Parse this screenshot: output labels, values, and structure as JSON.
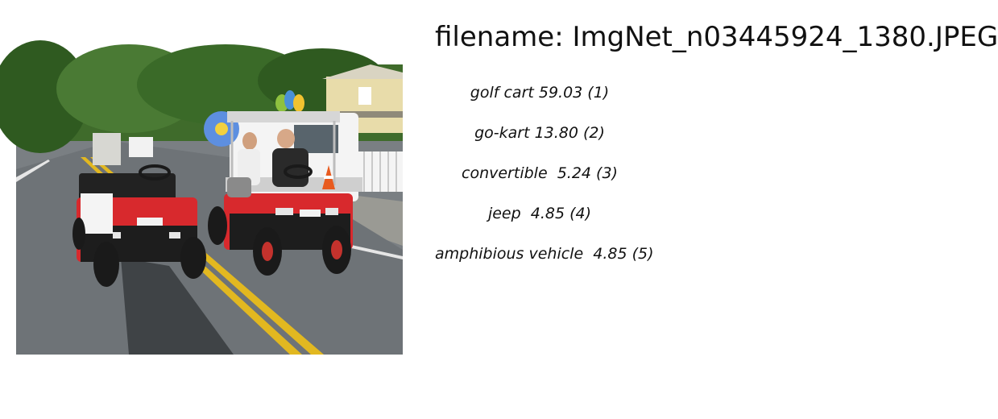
{
  "filename": "filename: ImgNet_n03445924_1380.JPEG",
  "predictions": [
    {
      "text": "golf cart 59.03 (1)"
    },
    {
      "text": "go-kart 13.80 (2)"
    },
    {
      "text": "convertible  5.24 (3)"
    },
    {
      "text": "jeep  4.85 (4)"
    },
    {
      "text": "amphibious vehicle  4.85 (5)"
    }
  ]
}
